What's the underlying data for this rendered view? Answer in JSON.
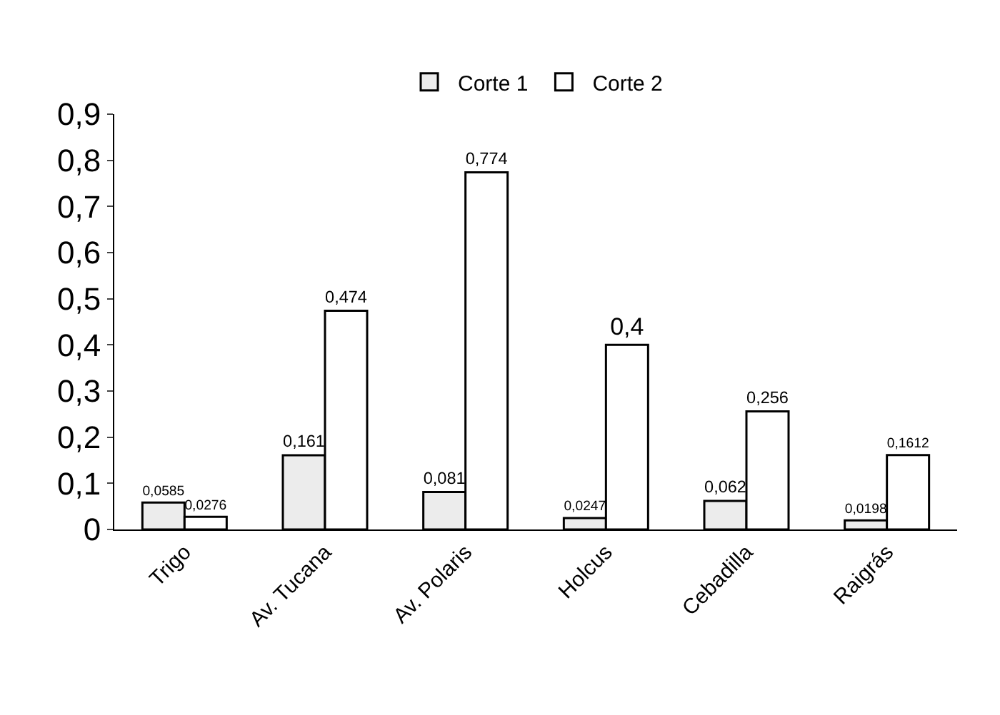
{
  "chart_data": {
    "type": "bar",
    "categories": [
      "Trigo",
      "Av. Tucana",
      "Av. Polaris",
      "Holcus",
      "Cebadilla",
      "Raigrás"
    ],
    "series": [
      {
        "name": "Corte 1",
        "color": "#ececec",
        "values": [
          0.0585,
          0.161,
          0.081,
          0.0247,
          0.062,
          0.0198
        ],
        "value_labels": [
          "0,0585",
          "0,161",
          "0,081",
          "0,0247",
          "0,062",
          "0,0198"
        ]
      },
      {
        "name": "Corte 2",
        "color": "#ffffff",
        "values": [
          0.0276,
          0.474,
          0.774,
          0.4,
          0.256,
          0.1612
        ],
        "value_labels": [
          "0,0276",
          "0,474",
          "0,774",
          "0,4",
          "0,256",
          "0,1612"
        ]
      }
    ],
    "ylim": [
      0,
      0.9
    ],
    "yticks": [
      0,
      {
        "value": 0.1,
        "label": "0,1"
      },
      {
        "value": 0.2,
        "label": "0,2"
      },
      {
        "value": 0.3,
        "label": "0,3"
      },
      {
        "value": 0.4,
        "label": "0,4"
      },
      {
        "value": 0.5,
        "label": "0,5"
      },
      {
        "value": 0.6,
        "label": "0,6"
      },
      {
        "value": 0.7,
        "label": "0,7"
      },
      {
        "value": 0.8,
        "label": "0,8"
      },
      {
        "value": 0.9,
        "label": "0,9"
      }
    ],
    "grid": false,
    "legend": "top"
  }
}
